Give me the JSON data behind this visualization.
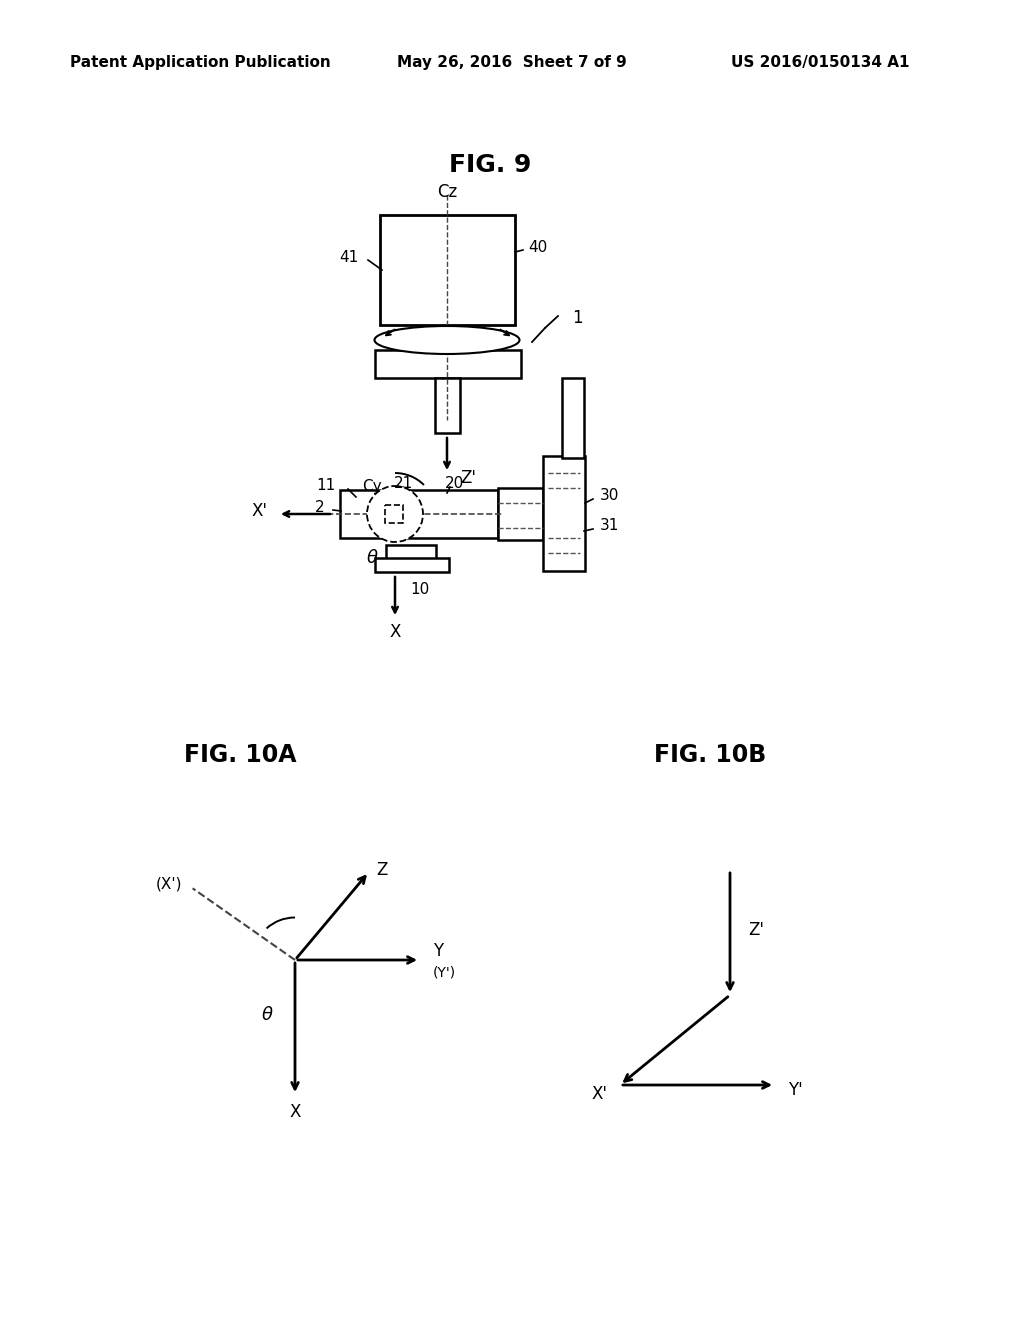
{
  "bg_color": "#ffffff",
  "header_left": "Patent Application Publication",
  "header_center": "May 26, 2016  Sheet 7 of 9",
  "header_right": "US 2016/0150134 A1",
  "fig9_title": "FIG. 9",
  "fig10a_title": "FIG. 10A",
  "fig10b_title": "FIG. 10B"
}
